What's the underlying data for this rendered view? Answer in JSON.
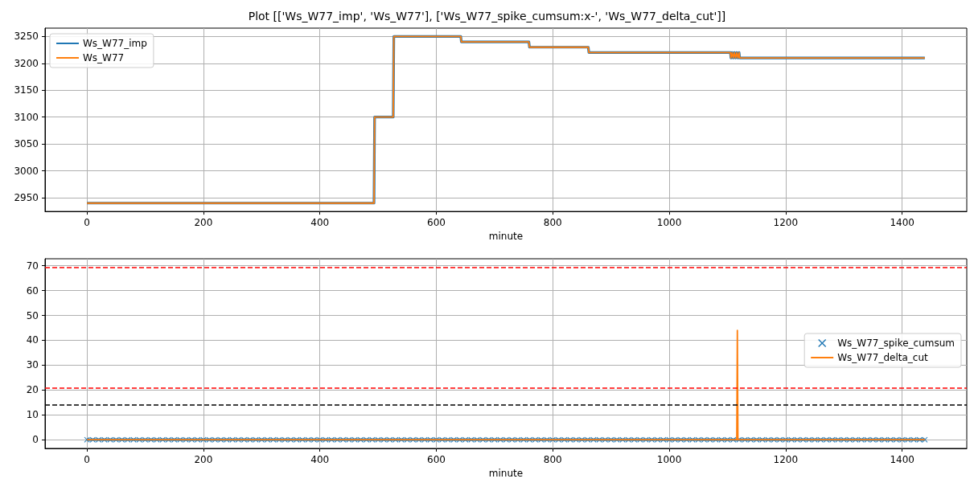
{
  "chart_data": [
    {
      "type": "line",
      "title": "Plot [['Ws_W77_imp', 'Ws_W77'], ['Ws_W77_spike_cumsum:x-', 'Ws_W77_delta_cut']]",
      "xlabel": "minute",
      "x": [
        0,
        493,
        494,
        526,
        527,
        642,
        643,
        759,
        760,
        861,
        862,
        1105,
        1106,
        1108,
        1110,
        1112,
        1114,
        1116,
        1118,
        1120,
        1121,
        1439
      ],
      "series": [
        {
          "name": "Ws_W77_imp",
          "color": "#1f77b4",
          "values": [
            2940,
            2940,
            3100,
            3100,
            3250,
            3250,
            3240,
            3240,
            3230,
            3230,
            3220,
            3220,
            3210,
            3220,
            3210,
            3220,
            3210,
            3220,
            3210,
            3220,
            3210,
            3210
          ]
        },
        {
          "name": "Ws_W77",
          "color": "#ff7f0e",
          "values": [
            2940,
            2940,
            3100,
            3100,
            3250,
            3250,
            3240,
            3240,
            3230,
            3230,
            3220,
            3220,
            3210,
            3220,
            3210,
            3220,
            3210,
            3220,
            3210,
            3220,
            3210,
            3210
          ]
        }
      ],
      "xlim": [
        -72,
        1511
      ],
      "xticks": [
        0,
        200,
        400,
        600,
        800,
        1000,
        1200,
        1400
      ],
      "ylim": [
        2924.5,
        3265.5
      ],
      "yticks": [
        2950,
        3000,
        3050,
        3100,
        3150,
        3200,
        3250
      ],
      "grid": true,
      "legend": "top left",
      "line_style": "solid"
    },
    {
      "type": "line",
      "xlabel": "minute",
      "series": [
        {
          "name": "Ws_W77_spike_cumsum",
          "color": "#1f77b4",
          "marker": "cross",
          "x": [
            0,
            10,
            20,
            30,
            40,
            50,
            60,
            70,
            80,
            90,
            100,
            110,
            120,
            130,
            140,
            150,
            160,
            170,
            180,
            190,
            200,
            210,
            220,
            230,
            240,
            250,
            260,
            270,
            280,
            290,
            300,
            310,
            320,
            330,
            340,
            350,
            360,
            370,
            380,
            390,
            400,
            410,
            420,
            430,
            440,
            450,
            460,
            470,
            480,
            490,
            500,
            510,
            520,
            530,
            540,
            550,
            560,
            570,
            580,
            590,
            600,
            610,
            620,
            630,
            640,
            650,
            660,
            670,
            680,
            690,
            700,
            710,
            720,
            730,
            740,
            750,
            760,
            770,
            780,
            790,
            800,
            810,
            820,
            830,
            840,
            850,
            860,
            870,
            880,
            890,
            900,
            910,
            920,
            930,
            940,
            950,
            960,
            970,
            980,
            990,
            1000,
            1010,
            1020,
            1030,
            1040,
            1050,
            1060,
            1070,
            1080,
            1090,
            1100,
            1110,
            1120,
            1130,
            1140,
            1150,
            1160,
            1170,
            1180,
            1190,
            1200,
            1210,
            1220,
            1230,
            1240,
            1250,
            1260,
            1270,
            1280,
            1290,
            1300,
            1310,
            1320,
            1330,
            1340,
            1350,
            1360,
            1370,
            1380,
            1390,
            1400,
            1410,
            1420,
            1430,
            1439
          ],
          "values": [
            0,
            0,
            0,
            0,
            0,
            0,
            0,
            0,
            0,
            0,
            0,
            0,
            0,
            0,
            0,
            0,
            0,
            0,
            0,
            0,
            0,
            0,
            0,
            0,
            0,
            0,
            0,
            0,
            0,
            0,
            0,
            0,
            0,
            0,
            0,
            0,
            0,
            0,
            0,
            0,
            0,
            0,
            0,
            0,
            0,
            0,
            0,
            0,
            0,
            0,
            0,
            0,
            0,
            0,
            0,
            0,
            0,
            0,
            0,
            0,
            0,
            0,
            0,
            0,
            0,
            0,
            0,
            0,
            0,
            0,
            0,
            0,
            0,
            0,
            0,
            0,
            0,
            0,
            0,
            0,
            0,
            0,
            0,
            0,
            0,
            0,
            0,
            0,
            0,
            0,
            0,
            0,
            0,
            0,
            0,
            0,
            0,
            0,
            0,
            0,
            0,
            0,
            0,
            0,
            0,
            0,
            0,
            0,
            0,
            0,
            0,
            0,
            0,
            0,
            0,
            0,
            0,
            0,
            0,
            0,
            0,
            0,
            0,
            0,
            0,
            0,
            0,
            0,
            0,
            0,
            0,
            0,
            0,
            0,
            0,
            0,
            0,
            0,
            0,
            0,
            0,
            0,
            0,
            0,
            0
          ]
        },
        {
          "name": "Ws_W77_delta_cut",
          "color": "#ff7f0e",
          "marker": "none",
          "x": [
            0,
            1116,
            1117,
            1118,
            1439
          ],
          "values": [
            0,
            0,
            44,
            0,
            0
          ]
        }
      ],
      "xlim": [
        -72,
        1511
      ],
      "xticks": [
        0,
        200,
        400,
        600,
        800,
        1000,
        1200,
        1400
      ],
      "ylim": [
        -3.5,
        72.8
      ],
      "yticks": [
        0,
        10,
        20,
        30,
        40,
        50,
        60,
        70
      ],
      "ref_lines": [
        {
          "axis": "y",
          "value": 69.3,
          "color": "#ff0000",
          "line_style": "dashed"
        },
        {
          "axis": "y",
          "value": 20.7,
          "color": "#ff0000",
          "line_style": "dashed"
        },
        {
          "axis": "y",
          "value": 14,
          "color": "#000000",
          "line_style": "dashed"
        }
      ],
      "grid": true,
      "legend": "right",
      "line_style": "solid"
    }
  ]
}
